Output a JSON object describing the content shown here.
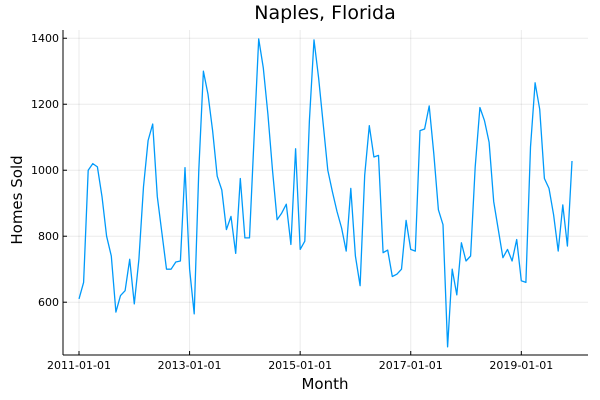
{
  "chart_data": {
    "type": "line",
    "title": "Naples, Florida",
    "xlabel": "Month",
    "ylabel": "Homes Sold",
    "x_start": "2011-01-01",
    "x_end": "2019-12-01",
    "x_ticks": [
      "2011-01-01",
      "2013-01-01",
      "2015-01-01",
      "2017-01-01",
      "2019-01-01"
    ],
    "y_ticks": [
      600,
      800,
      1000,
      1200,
      1400
    ],
    "ylim": [
      440,
      1425
    ],
    "grid": true,
    "legend": false,
    "series": [
      {
        "color": "#009AFA",
        "values": [
          610,
          660,
          1000,
          1020,
          1010,
          920,
          800,
          740,
          570,
          620,
          635,
          730,
          595,
          730,
          950,
          1090,
          1140,
          920,
          810,
          700,
          700,
          722,
          725,
          1008,
          700,
          565,
          1000,
          1300,
          1230,
          1120,
          982,
          940,
          820,
          860,
          748,
          975,
          795,
          795,
          1100,
          1398,
          1310,
          1170,
          1000,
          850,
          870,
          897,
          775,
          1065,
          760,
          785,
          1150,
          1395,
          1280,
          1140,
          1000,
          935,
          875,
          825,
          755,
          945,
          740,
          650,
          985,
          1135,
          1040,
          1045,
          750,
          758,
          678,
          685,
          700,
          848,
          760,
          755,
          1120,
          1125,
          1195,
          1050,
          880,
          835,
          465,
          700,
          622,
          780,
          725,
          740,
          1010,
          1190,
          1150,
          1085,
          905,
          820,
          735,
          760,
          725,
          790,
          665,
          660,
          1070,
          1265,
          1185,
          975,
          945,
          865,
          755,
          895,
          770,
          1028
        ]
      }
    ]
  }
}
